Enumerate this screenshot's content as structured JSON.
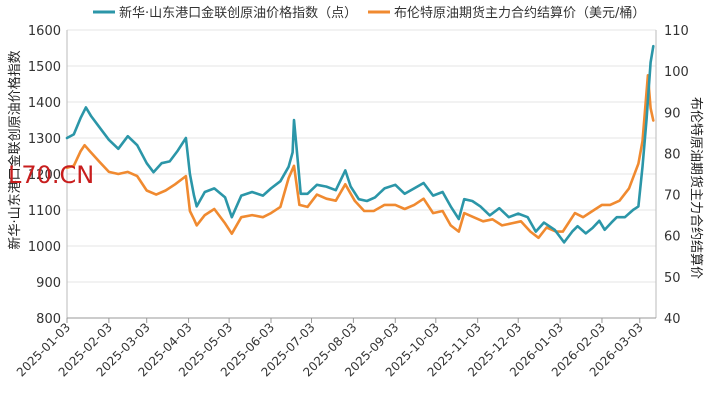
{
  "chart_data": {
    "type": "line",
    "legend_position": "top",
    "grid": "horizontal",
    "watermark": "L70.CN",
    "y_left": {
      "label": "新华·山东港口金联创原油价格指数",
      "range": [
        800,
        1600
      ],
      "ticks": [
        "1600",
        "1500",
        "1400",
        "1300",
        "1200",
        "1100",
        "1000",
        "900",
        "800"
      ]
    },
    "y_right": {
      "label": "布伦特原油期货主力合约结算价",
      "range": [
        40,
        110
      ],
      "ticks": [
        "110",
        "100",
        "90",
        "80",
        "70",
        "60",
        "50",
        "40"
      ]
    },
    "x_ticks": [
      "2025-01-03",
      "2025-02-03",
      "2025-03-03",
      "2025-04-03",
      "2025-05-03",
      "2025-06-03",
      "2025-07-03",
      "2025-08-03",
      "2025-09-03",
      "2025-10-03",
      "2025-11-03",
      "2025-12-03",
      "2026-01-03",
      "2026-02-03",
      "2026-03-03"
    ],
    "series": [
      {
        "name": "新华·山东港口金联创原油价格指数（点）",
        "axis": "left",
        "color": "#2b96a8",
        "points": [
          [
            "2025-01-03",
            1300
          ],
          [
            "2025-01-08",
            1310
          ],
          [
            "2025-01-13",
            1355
          ],
          [
            "2025-01-17",
            1385
          ],
          [
            "2025-01-21",
            1360
          ],
          [
            "2025-01-27",
            1330
          ],
          [
            "2025-02-03",
            1295
          ],
          [
            "2025-02-10",
            1270
          ],
          [
            "2025-02-17",
            1305
          ],
          [
            "2025-02-24",
            1280
          ],
          [
            "2025-03-03",
            1230
          ],
          [
            "2025-03-08",
            1205
          ],
          [
            "2025-03-14",
            1230
          ],
          [
            "2025-03-20",
            1235
          ],
          [
            "2025-03-26",
            1265
          ],
          [
            "2025-04-01",
            1300
          ],
          [
            "2025-04-04",
            1200
          ],
          [
            "2025-04-07",
            1140
          ],
          [
            "2025-04-09",
            1110
          ],
          [
            "2025-04-15",
            1150
          ],
          [
            "2025-04-22",
            1160
          ],
          [
            "2025-04-30",
            1135
          ],
          [
            "2025-05-05",
            1080
          ],
          [
            "2025-05-12",
            1140
          ],
          [
            "2025-05-20",
            1150
          ],
          [
            "2025-05-28",
            1140
          ],
          [
            "2025-06-03",
            1160
          ],
          [
            "2025-06-10",
            1180
          ],
          [
            "2025-06-16",
            1220
          ],
          [
            "2025-06-19",
            1260
          ],
          [
            "2025-06-20",
            1350
          ],
          [
            "2025-06-23",
            1230
          ],
          [
            "2025-06-25",
            1145
          ],
          [
            "2025-06-30",
            1145
          ],
          [
            "2025-07-07",
            1170
          ],
          [
            "2025-07-14",
            1165
          ],
          [
            "2025-07-21",
            1155
          ],
          [
            "2025-07-28",
            1210
          ],
          [
            "2025-08-01",
            1165
          ],
          [
            "2025-08-07",
            1130
          ],
          [
            "2025-08-13",
            1125
          ],
          [
            "2025-08-19",
            1135
          ],
          [
            "2025-08-26",
            1160
          ],
          [
            "2025-09-03",
            1170
          ],
          [
            "2025-09-10",
            1145
          ],
          [
            "2025-09-17",
            1160
          ],
          [
            "2025-09-24",
            1175
          ],
          [
            "2025-10-01",
            1140
          ],
          [
            "2025-10-08",
            1150
          ],
          [
            "2025-10-14",
            1110
          ],
          [
            "2025-10-20",
            1075
          ],
          [
            "2025-10-24",
            1130
          ],
          [
            "2025-10-30",
            1125
          ],
          [
            "2025-11-05",
            1110
          ],
          [
            "2025-11-12",
            1085
          ],
          [
            "2025-11-19",
            1105
          ],
          [
            "2025-11-26",
            1080
          ],
          [
            "2025-12-03",
            1090
          ],
          [
            "2025-12-10",
            1080
          ],
          [
            "2025-12-16",
            1040
          ],
          [
            "2025-12-22",
            1065
          ],
          [
            "2025-12-30",
            1045
          ],
          [
            "2026-01-03",
            1025
          ],
          [
            "2026-01-06",
            1010
          ],
          [
            "2026-01-12",
            1040
          ],
          [
            "2026-01-16",
            1055
          ],
          [
            "2026-01-22",
            1035
          ],
          [
            "2026-01-27",
            1050
          ],
          [
            "2026-02-01",
            1070
          ],
          [
            "2026-02-05",
            1045
          ],
          [
            "2026-02-10",
            1065
          ],
          [
            "2026-02-14",
            1080
          ],
          [
            "2026-02-20",
            1080
          ],
          [
            "2026-02-26",
            1100
          ],
          [
            "2026-03-02",
            1110
          ],
          [
            "2026-03-05",
            1220
          ],
          [
            "2026-03-08",
            1350
          ],
          [
            "2026-03-11",
            1510
          ],
          [
            "2026-03-13",
            1555
          ]
        ]
      },
      {
        "name": "布伦特原油期货主力合约结算价（美元/桶）",
        "axis": "right",
        "color": "#f08a30",
        "points": [
          [
            "2025-01-03",
            76.5
          ],
          [
            "2025-01-08",
            77
          ],
          [
            "2025-01-13",
            80.5
          ],
          [
            "2025-01-16",
            82
          ],
          [
            "2025-01-20",
            80.5
          ],
          [
            "2025-01-27",
            78
          ],
          [
            "2025-02-03",
            75.5
          ],
          [
            "2025-02-10",
            75
          ],
          [
            "2025-02-17",
            75.5
          ],
          [
            "2025-02-24",
            74.5
          ],
          [
            "2025-03-03",
            71
          ],
          [
            "2025-03-10",
            70
          ],
          [
            "2025-03-17",
            71
          ],
          [
            "2025-03-24",
            72.5
          ],
          [
            "2025-04-01",
            74.5
          ],
          [
            "2025-04-04",
            66
          ],
          [
            "2025-04-07",
            64
          ],
          [
            "2025-04-09",
            62.5
          ],
          [
            "2025-04-15",
            65
          ],
          [
            "2025-04-22",
            66.5
          ],
          [
            "2025-04-30",
            63
          ],
          [
            "2025-05-05",
            60.5
          ],
          [
            "2025-05-12",
            64.5
          ],
          [
            "2025-05-20",
            65
          ],
          [
            "2025-05-28",
            64.5
          ],
          [
            "2025-06-03",
            65.5
          ],
          [
            "2025-06-10",
            67
          ],
          [
            "2025-06-16",
            74
          ],
          [
            "2025-06-20",
            77
          ],
          [
            "2025-06-24",
            67.5
          ],
          [
            "2025-06-30",
            67
          ],
          [
            "2025-07-07",
            70
          ],
          [
            "2025-07-14",
            69
          ],
          [
            "2025-07-21",
            68.5
          ],
          [
            "2025-07-28",
            72.5
          ],
          [
            "2025-08-04",
            68.5
          ],
          [
            "2025-08-11",
            66
          ],
          [
            "2025-08-18",
            66
          ],
          [
            "2025-08-26",
            67.5
          ],
          [
            "2025-09-03",
            67.5
          ],
          [
            "2025-09-10",
            66.5
          ],
          [
            "2025-09-17",
            67.5
          ],
          [
            "2025-09-24",
            69
          ],
          [
            "2025-10-01",
            65.5
          ],
          [
            "2025-10-08",
            66
          ],
          [
            "2025-10-14",
            62.5
          ],
          [
            "2025-10-20",
            61
          ],
          [
            "2025-10-24",
            65.5
          ],
          [
            "2025-10-31",
            64.5
          ],
          [
            "2025-11-07",
            63.5
          ],
          [
            "2025-11-14",
            64
          ],
          [
            "2025-11-21",
            62.5
          ],
          [
            "2025-11-28",
            63
          ],
          [
            "2025-12-05",
            63.5
          ],
          [
            "2025-12-12",
            61
          ],
          [
            "2025-12-18",
            59.5
          ],
          [
            "2025-12-24",
            62
          ],
          [
            "2025-12-31",
            61
          ],
          [
            "2026-01-05",
            61
          ],
          [
            "2026-01-09",
            63
          ],
          [
            "2026-01-14",
            65.5
          ],
          [
            "2026-01-20",
            64.5
          ],
          [
            "2026-01-27",
            66
          ],
          [
            "2026-02-03",
            67.5
          ],
          [
            "2026-02-09",
            67.5
          ],
          [
            "2026-02-16",
            68.5
          ],
          [
            "2026-02-23",
            71.5
          ],
          [
            "2026-03-02",
            77.5
          ],
          [
            "2026-03-05",
            83
          ],
          [
            "2026-03-09",
            99
          ],
          [
            "2026-03-11",
            91
          ],
          [
            "2026-03-13",
            88
          ]
        ]
      }
    ]
  }
}
